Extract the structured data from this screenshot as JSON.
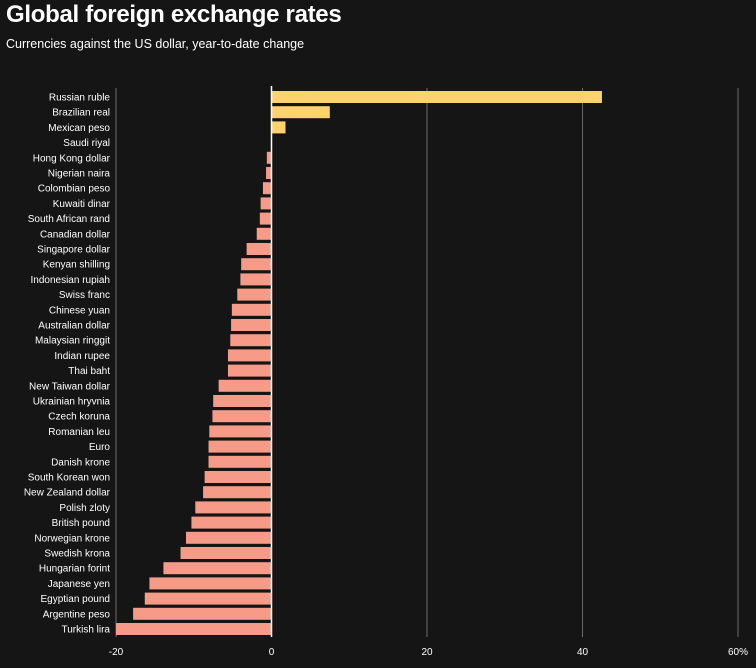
{
  "header": {
    "title": "Global foreign exchange rates",
    "subtitle": "Currencies against the US dollar, year-to-date change"
  },
  "colors": {
    "background": "#151515",
    "positive_bar": "#ffd36b",
    "negative_bar": "#f59b87",
    "gridline": "#6a6a6a",
    "zero_line": "#ffffff",
    "text": "#ffffff"
  },
  "chart_data": {
    "type": "bar",
    "orientation": "horizontal",
    "title": "Global foreign exchange rates",
    "subtitle": "Currencies against the US dollar, year-to-date change",
    "xlabel": "",
    "ylabel": "",
    "xlim": [
      -20,
      60
    ],
    "grid": true,
    "x_ticks": [
      -20,
      0,
      20,
      40,
      60
    ],
    "x_tick_labels": [
      "-20",
      "0",
      "20",
      "40",
      "60%"
    ],
    "categories": [
      "Russian ruble",
      "Brazilian real",
      "Mexican peso",
      "Saudi riyal",
      "Hong Kong dollar",
      "Nigerian naira",
      "Colombian peso",
      "Kuwaiti dinar",
      "South African rand",
      "Canadian dollar",
      "Singapore dollar",
      "Kenyan shilling",
      "Indonesian rupiah",
      "Swiss franc",
      "Chinese yuan",
      "Australian dollar",
      "Malaysian ringgit",
      "Indian rupee",
      "Thai baht",
      "New Taiwan dollar",
      "Ukrainian hryvnia",
      "Czech koruna",
      "Romanian leu",
      "Euro",
      "Danish krone",
      "South Korean won",
      "New Zealand dollar",
      "Polish zloty",
      "British pound",
      "Norwegian krone",
      "Swedish krona",
      "Hungarian forint",
      "Japanese yen",
      "Egyptian pound",
      "Argentine peso",
      "Turkish lira"
    ],
    "values": [
      42.5,
      7.5,
      1.8,
      0.0,
      -0.6,
      -0.7,
      -1.1,
      -1.4,
      -1.5,
      -1.9,
      -3.2,
      -3.9,
      -4.0,
      -4.4,
      -5.1,
      -5.2,
      -5.3,
      -5.6,
      -5.6,
      -6.8,
      -7.5,
      -7.6,
      -8.0,
      -8.1,
      -8.1,
      -8.6,
      -8.8,
      -9.8,
      -10.3,
      -11.0,
      -11.7,
      -13.9,
      -15.7,
      -16.3,
      -17.8,
      -20.0
    ]
  }
}
